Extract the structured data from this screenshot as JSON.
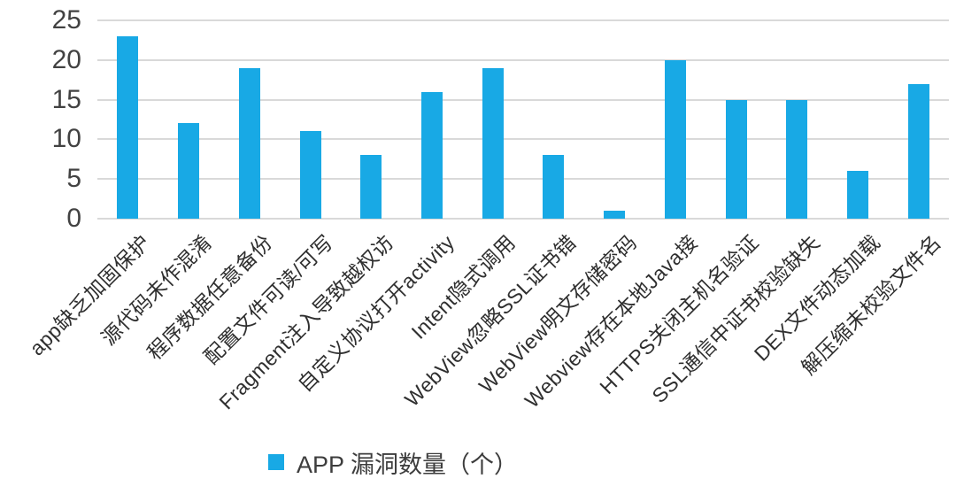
{
  "colors": {
    "bar": "#18a9e5",
    "gridline": "#d9d9d9",
    "axis_text": "#424242",
    "label_text": "#2f2f2f",
    "background": "#ffffff"
  },
  "chart_data": {
    "type": "bar",
    "title": "",
    "xlabel": "",
    "ylabel": "",
    "categories": [
      "app缺乏加固保护",
      "源代码未作混淆",
      "程序数据任意备份",
      "配置文件可读/可写",
      "Fragment注入导致越权访",
      "自定义协议打开activity",
      "Intent隐式调用",
      "WebView忽略SSL证书错",
      "WebView明文存储密码",
      "Webview存在本地Java接",
      "HTTPS关闭主机名验证",
      "SSL通信中证书校验缺失",
      "DEX文件动态加载",
      "解压缩未校验文件名"
    ],
    "values": [
      23,
      12,
      19,
      11,
      8,
      16,
      19,
      8,
      1,
      20,
      15,
      15,
      6,
      17
    ],
    "series_name": "APP 漏洞数量（个）",
    "ylim": [
      0,
      25
    ],
    "yticks": [
      0,
      5,
      10,
      15,
      20,
      25
    ],
    "grid": true,
    "legend_position": "bottom",
    "bar_color": "#18a9e5",
    "x_label_rotation_deg": 45
  },
  "legend": {
    "label": "APP 漏洞数量（个）",
    "swatch_color": "#18a9e5"
  }
}
